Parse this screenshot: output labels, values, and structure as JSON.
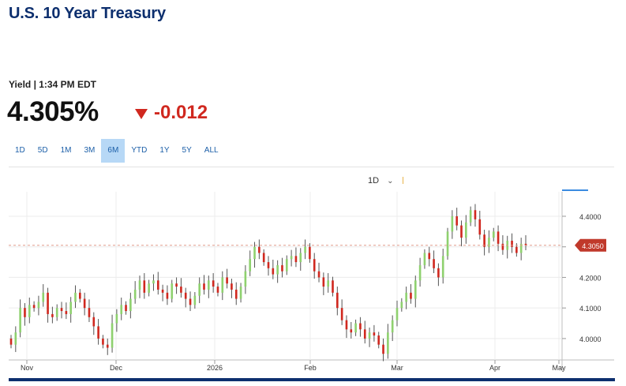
{
  "header": {
    "title": "U.S. 10 Year Treasury"
  },
  "quote": {
    "label": "Yield | 1:34 PM EDT",
    "price": "4.305%",
    "change": "-0.012"
  },
  "ranges": {
    "items": [
      "1D",
      "5D",
      "1M",
      "3M",
      "6M",
      "YTD",
      "1Y",
      "5Y",
      "ALL"
    ],
    "active": "6M"
  },
  "chart_controls": {
    "interval": "1D"
  },
  "colors": {
    "up": "#8fd16f",
    "down": "#d0281f",
    "brand": "#0d2f6e",
    "last_marker": "#c0392b"
  },
  "chart_data": {
    "type": "candlestick",
    "title": "",
    "x_labels": [
      "Nov",
      "Dec",
      "2026",
      "Feb",
      "Mar",
      "Apr",
      "May"
    ],
    "y_ticks": [
      "4.4000",
      "4.3000",
      "4.2000",
      "4.1000",
      "4.0000"
    ],
    "ylim": [
      3.93,
      4.48
    ],
    "last_value": "4.3050",
    "last_line": 4.305,
    "grid": true,
    "closes": [
      3.98,
      4.02,
      4.1,
      4.07,
      4.11,
      4.1,
      4.12,
      4.15,
      4.08,
      4.07,
      4.1,
      4.09,
      4.08,
      4.12,
      4.15,
      4.13,
      4.1,
      4.07,
      4.04,
      4.0,
      3.98,
      3.97,
      4.05,
      4.08,
      4.11,
      4.09,
      4.13,
      4.16,
      4.19,
      4.15,
      4.18,
      4.19,
      4.16,
      4.15,
      4.13,
      4.18,
      4.17,
      4.15,
      4.13,
      4.11,
      4.14,
      4.18,
      4.16,
      4.19,
      4.17,
      4.15,
      4.2,
      4.18,
      4.16,
      4.13,
      4.17,
      4.22,
      4.26,
      4.3,
      4.28,
      4.25,
      4.23,
      4.21,
      4.24,
      4.22,
      4.26,
      4.27,
      4.25,
      4.28,
      4.3,
      4.26,
      4.22,
      4.2,
      4.17,
      4.19,
      4.15,
      4.1,
      4.06,
      4.03,
      4.02,
      4.05,
      4.03,
      4.0,
      4.02,
      4.01,
      3.98,
      3.95,
      4.02,
      4.06,
      4.1,
      4.12,
      4.15,
      4.13,
      4.19,
      4.24,
      4.28,
      4.26,
      4.23,
      4.2,
      4.27,
      4.35,
      4.4,
      4.37,
      4.33,
      4.38,
      4.42,
      4.39,
      4.34,
      4.3,
      4.33,
      4.35,
      4.31,
      4.29,
      4.32,
      4.3,
      4.28,
      4.31,
      4.305
    ]
  }
}
